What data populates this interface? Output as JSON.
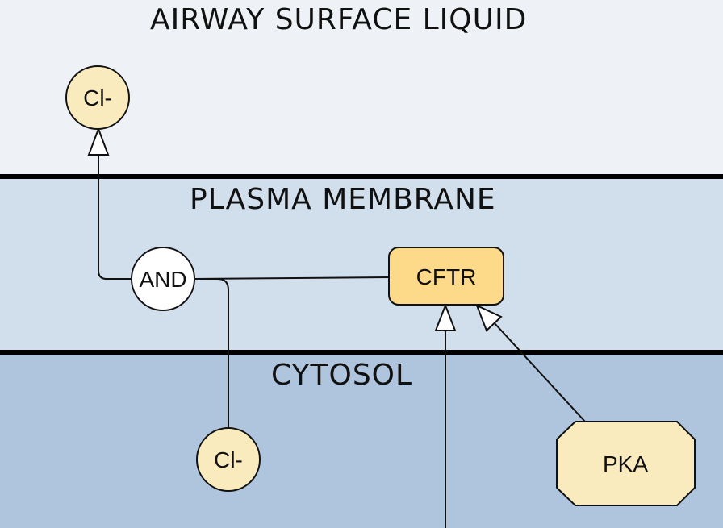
{
  "compartments": {
    "airway": "AIRWAY SURFACE LIQUID",
    "membrane": "PLASMA MEMBRANE",
    "cytosol": "CYTOSOL"
  },
  "nodes": {
    "cl_top": "Cl-",
    "and_gate": "AND",
    "cftr": "CFTR",
    "cl_bottom": "Cl-",
    "pka": "PKA"
  },
  "colors": {
    "airway_bg": "#eef2f6",
    "membrane_bg": "#d1dfec",
    "cytosol_bg": "#afc5dd",
    "molecule_fill": "#faebbf",
    "protein_fill": "#fdd98a",
    "and_fill": "#ffffff",
    "line": "#111111"
  }
}
